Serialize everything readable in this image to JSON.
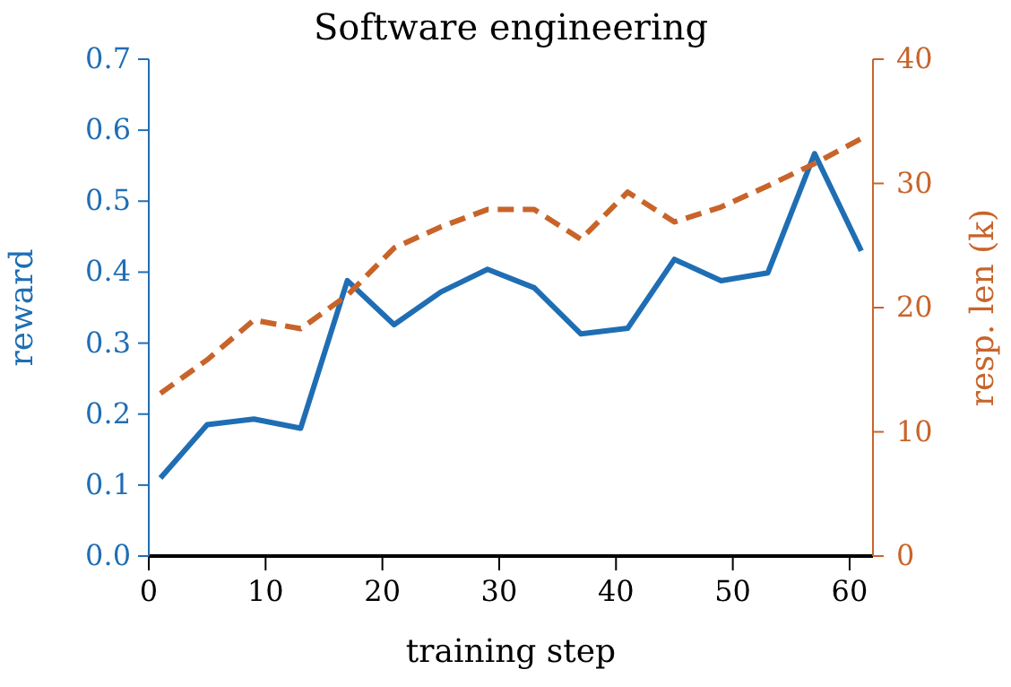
{
  "chart_data": {
    "type": "line",
    "title": "Software engineering",
    "xlabel": "training step",
    "ylabel": "reward",
    "y2label": "resp. len (k)",
    "x": [
      1,
      5,
      9,
      13,
      17,
      21,
      25,
      29,
      33,
      37,
      41,
      45,
      49,
      53,
      57,
      61
    ],
    "series": [
      {
        "color": "#1f6eb4",
        "line_style": "solid",
        "values": [
          0.11,
          0.185,
          0.193,
          0.18,
          0.388,
          0.326,
          0.372,
          0.404,
          0.378,
          0.313,
          0.321,
          0.418,
          0.388,
          0.399,
          0.567,
          0.43
        ]
      },
      {
        "color": "#c8642a",
        "line_style": "dashed",
        "axis": "y2",
        "values": [
          13.1,
          15.8,
          19.0,
          18.3,
          21.0,
          24.8,
          26.5,
          27.9,
          27.9,
          25.5,
          29.3,
          26.9,
          28.1,
          29.8,
          31.6,
          33.6
        ]
      }
    ],
    "xlim": [
      0,
      62
    ],
    "xticks": [
      0,
      10,
      20,
      30,
      40,
      50,
      60
    ],
    "ylim": [
      0,
      0.7
    ],
    "yticks": [
      {
        "value": 0,
        "label": "0.0"
      },
      0.1,
      0.2,
      0.3,
      0.4,
      0.5,
      0.6,
      0.7
    ],
    "y2lim": [
      0,
      40
    ],
    "y2ticks": [
      0,
      10,
      20,
      30,
      40
    ],
    "grid": false,
    "marker": "none"
  }
}
